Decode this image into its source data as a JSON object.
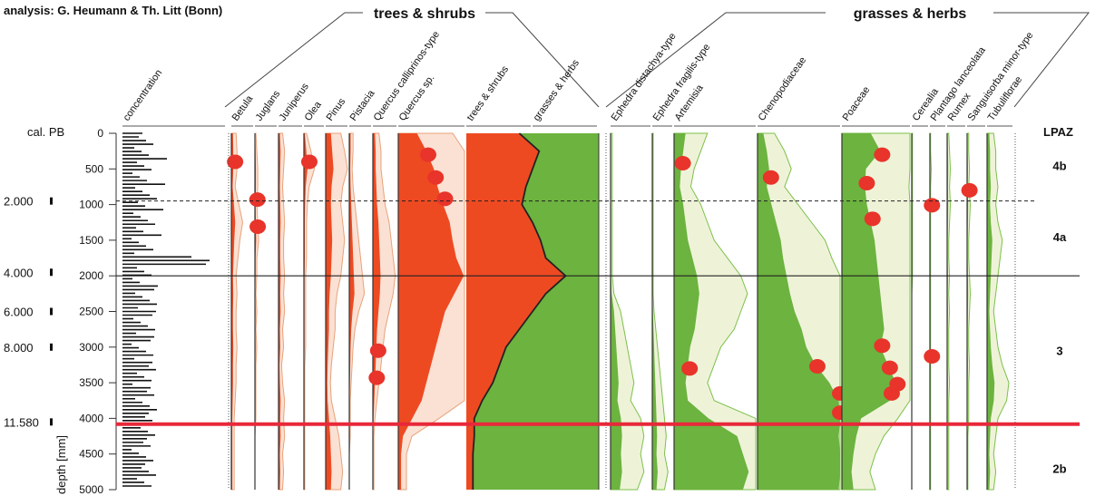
{
  "header": {
    "analysis": "analysis: G. Heumann & Th. Litt (Bonn)",
    "group_trees": "trees & shrubs",
    "group_grasses": "grasses & herbs",
    "cal_label": "cal. PB",
    "depth_label": "depth [mm]",
    "lpaz_label": "LPAZ"
  },
  "colors": {
    "tree": "#ee4a22",
    "tree_light": "#fbe1d3",
    "tree_line": "#e8a27a",
    "herb": "#6cb33f",
    "herb_light": "#eef3d8",
    "herb_line": "#7cc04a",
    "marker": "#e8342a",
    "event_line": "#e8283a"
  },
  "chart_data": {
    "type": "area",
    "y_axis": {
      "label": "depth [mm]",
      "ylim": [
        0,
        5000
      ],
      "ticks": [
        0,
        500,
        1000,
        1500,
        2000,
        2500,
        3000,
        3500,
        4000,
        4500,
        5000
      ]
    },
    "cal_ages": [
      {
        "label": "2.000",
        "depth": 950
      },
      {
        "label": "4.000",
        "depth": 1950
      },
      {
        "label": "6.000",
        "depth": 2500
      },
      {
        "label": "8.000",
        "depth": 3000
      },
      {
        "label": "11.580",
        "depth": 4050
      }
    ],
    "zones": [
      {
        "label": "4b",
        "depth": 450
      },
      {
        "label": "4a",
        "depth": 1450
      },
      {
        "label": "3",
        "depth": 3050
      },
      {
        "label": "2b",
        "depth": 4700
      }
    ],
    "boundaries": {
      "dashed": 950,
      "solid": 2000,
      "red": 4080
    },
    "depths": [
      0,
      250,
      500,
      750,
      1000,
      1250,
      1500,
      1750,
      2000,
      2250,
      2500,
      2750,
      3000,
      3250,
      3500,
      3750,
      4000,
      4250,
      4500,
      4750,
      5000
    ],
    "taxa": [
      {
        "name": "concentration",
        "group": "conc"
      },
      {
        "name": "Betula",
        "group": "tree",
        "values": [
          5,
          6,
          6,
          4,
          8,
          12,
          9,
          7,
          5,
          6,
          5,
          5,
          6,
          5,
          5,
          4,
          3,
          3,
          3,
          3,
          3
        ],
        "markers": [
          400
        ]
      },
      {
        "name": "Juglans",
        "group": "tree",
        "values": [
          1,
          2,
          3,
          3,
          2,
          3,
          4,
          2,
          2,
          1,
          2,
          1,
          2,
          1,
          1,
          1,
          1,
          0,
          0,
          0,
          0
        ],
        "markers": [
          930,
          1310
        ]
      },
      {
        "name": "Juniperus",
        "group": "tree",
        "values": [
          4,
          6,
          5,
          4,
          5,
          6,
          5,
          5,
          6,
          5,
          6,
          4,
          5,
          3,
          4,
          6,
          5,
          6,
          4,
          5,
          4
        ],
        "markers": []
      },
      {
        "name": "Olea",
        "group": "tree",
        "values": [
          3,
          8,
          12,
          6,
          4,
          3,
          3,
          3,
          2,
          2,
          2,
          2,
          2,
          1,
          1,
          1,
          1,
          1,
          1,
          1,
          1
        ],
        "markers": [
          400
        ]
      },
      {
        "name": "Pinus",
        "group": "tree",
        "values": [
          16,
          20,
          24,
          18,
          16,
          18,
          20,
          18,
          16,
          12,
          10,
          10,
          8,
          6,
          5,
          6,
          10,
          14,
          16,
          18,
          16
        ],
        "markers": []
      },
      {
        "name": "Pistacia",
        "group": "tree",
        "values": [
          4,
          4,
          3,
          4,
          6,
          8,
          10,
          12,
          14,
          16,
          10,
          6,
          4,
          3,
          2,
          1,
          1,
          1,
          0,
          0,
          0
        ],
        "markers": []
      },
      {
        "name": "Quercus calliprinos-type",
        "group": "tree",
        "values": [
          6,
          8,
          8,
          10,
          12,
          16,
          18,
          20,
          22,
          20,
          16,
          12,
          10,
          8,
          6,
          4,
          2,
          1,
          1,
          1,
          1
        ],
        "markers": [
          3050,
          3430
        ]
      },
      {
        "name": "Quercus sp.",
        "group": "tree",
        "values": [
          20,
          30,
          38,
          42,
          48,
          55,
          58,
          62,
          70,
          60,
          50,
          45,
          40,
          35,
          30,
          25,
          15,
          5,
          3,
          3,
          3
        ],
        "markers": [
          300,
          620,
          920
        ]
      },
      {
        "name": "trees & shrubs",
        "group": "summary",
        "values": [
          40,
          55,
          50,
          45,
          42,
          50,
          56,
          60,
          75,
          60,
          50,
          40,
          30,
          25,
          20,
          12,
          6,
          6,
          5,
          5,
          5
        ],
        "markers": []
      },
      {
        "name": "grasses & herbs",
        "group": "summary",
        "markers": []
      },
      {
        "name": "Ephedra distachya-type",
        "group": "herb",
        "values": [
          1,
          1,
          1,
          1,
          1,
          1,
          1,
          1,
          1,
          2,
          6,
          8,
          10,
          12,
          14,
          12,
          18,
          20,
          18,
          20,
          16
        ],
        "markers": []
      },
      {
        "name": "Ephedra fragilis-type",
        "group": "herb",
        "values": [
          1,
          1,
          1,
          1,
          1,
          1,
          1,
          1,
          1,
          1,
          2,
          4,
          6,
          8,
          10,
          12,
          14,
          16,
          14,
          18,
          14
        ],
        "markers": []
      },
      {
        "name": "Artemisia",
        "group": "herb",
        "values": [
          10,
          8,
          6,
          5,
          8,
          10,
          12,
          16,
          20,
          22,
          20,
          18,
          14,
          12,
          10,
          12,
          30,
          55,
          60,
          65,
          60
        ],
        "markers": [
          420,
          3300
        ]
      },
      {
        "name": "Chenopodiaceae",
        "group": "herb",
        "values": [
          5,
          8,
          10,
          8,
          12,
          16,
          20,
          22,
          25,
          28,
          32,
          38,
          42,
          50,
          62,
          70,
          78,
          70,
          72,
          75,
          70
        ],
        "markers": [
          620,
          3270,
          3650,
          3920
        ]
      },
      {
        "name": "Poaceae",
        "group": "herb",
        "values": [
          30,
          40,
          25,
          24,
          26,
          30,
          34,
          36,
          38,
          40,
          42,
          44,
          40,
          48,
          56,
          50,
          20,
          15,
          12,
          10,
          12
        ],
        "markers": [
          300,
          700,
          1200,
          2980,
          3290,
          3520,
          3650
        ]
      },
      {
        "name": "Cerealia",
        "group": "herb",
        "values": [
          1,
          1,
          1,
          1,
          1,
          1,
          1,
          1,
          1,
          0,
          0,
          0,
          0,
          0,
          0,
          0,
          0,
          0,
          0,
          0,
          0
        ],
        "markers": []
      },
      {
        "name": "Plantago lanceolata",
        "group": "herb",
        "values": [
          1,
          1,
          2,
          1,
          1,
          1,
          1,
          1,
          1,
          1,
          1,
          1,
          1,
          1,
          1,
          1,
          1,
          1,
          1,
          1,
          1
        ],
        "markers": [
          1010,
          3130
        ]
      },
      {
        "name": "Rumex",
        "group": "herb",
        "values": [
          2,
          3,
          4,
          3,
          4,
          3,
          2,
          2,
          3,
          2,
          3,
          2,
          2,
          2,
          3,
          2,
          2,
          2,
          2,
          2,
          2
        ],
        "markers": []
      },
      {
        "name": "Sanguisorba minor-type",
        "group": "herb",
        "values": [
          2,
          2,
          3,
          2,
          4,
          3,
          2,
          2,
          3,
          4,
          3,
          2,
          2,
          3,
          2,
          2,
          2,
          1,
          1,
          1,
          1
        ],
        "markers": [
          800
        ]
      },
      {
        "name": "Tubuliflorae",
        "group": "herb",
        "values": [
          6,
          8,
          8,
          10,
          8,
          10,
          14,
          12,
          10,
          8,
          6,
          8,
          10,
          14,
          20,
          18,
          10,
          8,
          6,
          8,
          6
        ],
        "markers": []
      }
    ]
  }
}
